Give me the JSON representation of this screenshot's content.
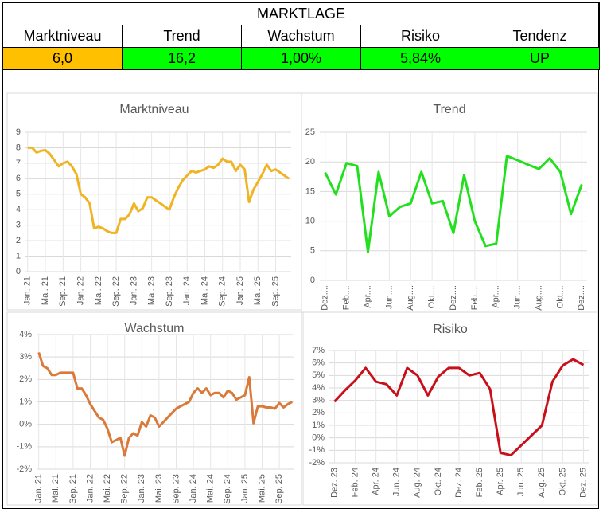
{
  "header": {
    "title": "MARKTLAGE",
    "columns": [
      "Marktniveau",
      "Trend",
      "Wachstum",
      "Risiko",
      "Tendenz"
    ],
    "values": [
      "6,0",
      "16,2",
      "1,00%",
      "5,84%",
      "UP"
    ],
    "colors": [
      "#ffc000",
      "#00ff00",
      "#00ff00",
      "#00ff00",
      "#00ff00"
    ]
  },
  "chart_data": [
    {
      "type": "line",
      "title": "Marktniveau",
      "categories": [
        "Jan. 21",
        null,
        null,
        null,
        "Mai. 21",
        null,
        null,
        null,
        "Sep. 21",
        null,
        null,
        null,
        "Jan. 22",
        null,
        null,
        null,
        "Mai. 22",
        null,
        null,
        null,
        "Sep. 22",
        null,
        null,
        null,
        "Jan. 23",
        null,
        null,
        null,
        "Mai. 23",
        null,
        null,
        null,
        "Sep. 23",
        null,
        null,
        null,
        "Jan. 24",
        null,
        null,
        null,
        "Mai. 24",
        null,
        null,
        null,
        "Sep. 24",
        null,
        null,
        null,
        "Jan. 25",
        null,
        null,
        null,
        "Mai. 25",
        null,
        null,
        null,
        "Sep. 25",
        null,
        null,
        null
      ],
      "series": [
        {
          "color": "#f0b323",
          "values": [
            8.0,
            8.0,
            7.7,
            7.8,
            7.85,
            7.6,
            7.2,
            6.8,
            7.0,
            7.1,
            6.8,
            6.3,
            5.0,
            4.8,
            4.4,
            2.8,
            2.9,
            2.8,
            2.6,
            2.5,
            2.5,
            3.4,
            3.4,
            3.7,
            4.4,
            3.9,
            4.1,
            4.8,
            4.8,
            4.6,
            4.4,
            4.2,
            4.0,
            4.8,
            5.4,
            5.9,
            6.2,
            6.5,
            6.4,
            6.5,
            6.6,
            6.8,
            6.7,
            6.9,
            7.3,
            7.1,
            7.1,
            6.5,
            6.9,
            6.6,
            4.5,
            5.3,
            5.8,
            6.3,
            6.9,
            6.5,
            6.6,
            6.4,
            6.2,
            6.0
          ]
        }
      ],
      "ylim": [
        0,
        9
      ],
      "yticks": [
        0,
        1,
        2,
        3,
        4,
        5,
        6,
        7,
        8,
        9
      ],
      "grid": true
    },
    {
      "type": "line",
      "title": "Trend",
      "categories": [
        "Dez....",
        null,
        "Feb....",
        null,
        "Apr....",
        null,
        "Jun....",
        null,
        "Aug....",
        null,
        "Okt....",
        null,
        "Dez....",
        null,
        "Feb....",
        null,
        "Apr....",
        null,
        "Jun....",
        null,
        "Aug....",
        null,
        "Okt....",
        null,
        "Dez...."
      ],
      "series": [
        {
          "color": "#22e01e",
          "values": [
            18.2,
            14.5,
            19.8,
            19.3,
            4.8,
            18.3,
            10.8,
            12.4,
            13.0,
            18.3,
            13.0,
            13.4,
            8.0,
            17.8,
            10.0,
            5.8,
            6.2,
            21.0,
            20.3,
            19.5,
            18.8,
            20.6,
            18.3,
            11.2,
            16.2
          ]
        }
      ],
      "ylim": [
        0,
        25
      ],
      "yticks": [
        0,
        5,
        10,
        15,
        20,
        25
      ],
      "grid": true
    },
    {
      "type": "line",
      "title": "Wachstum",
      "categories": [
        "Jan. 21",
        null,
        null,
        null,
        "Mai. 21",
        null,
        null,
        null,
        "Sep. 21",
        null,
        null,
        null,
        "Jan. 22",
        null,
        null,
        null,
        "Mai. 22",
        null,
        null,
        null,
        "Sep. 22",
        null,
        null,
        null,
        "Jan. 23",
        null,
        null,
        null,
        "Mai. 23",
        null,
        null,
        null,
        "Sep. 23",
        null,
        null,
        null,
        "Jan. 24",
        null,
        null,
        null,
        "Mai. 24",
        null,
        null,
        null,
        "Sep. 24",
        null,
        null,
        null,
        "Jan. 25",
        null,
        null,
        null,
        "Mai. 25",
        null,
        null,
        null,
        "Sep. 25",
        null,
        null,
        null
      ],
      "series": [
        {
          "color": "#d9793a",
          "values": [
            3.2,
            2.6,
            2.5,
            2.2,
            2.2,
            2.3,
            2.3,
            2.3,
            2.3,
            1.6,
            1.6,
            1.3,
            0.9,
            0.6,
            0.3,
            0.2,
            -0.2,
            -0.8,
            -0.7,
            -0.6,
            -1.4,
            -0.6,
            -0.4,
            -0.5,
            0.1,
            -0.1,
            0.4,
            0.3,
            -0.1,
            0.1,
            0.3,
            0.5,
            0.7,
            0.8,
            0.9,
            1.0,
            1.4,
            1.6,
            1.4,
            1.6,
            1.3,
            1.4,
            1.4,
            1.2,
            1.5,
            1.4,
            1.1,
            1.2,
            1.3,
            2.1,
            0.05,
            0.8,
            0.8,
            0.75,
            0.75,
            0.7,
            0.95,
            0.75,
            0.9,
            1.0
          ]
        }
      ],
      "ylim": [
        -2,
        4
      ],
      "yticks": [
        {
          "value": -2,
          "label": "-2%"
        },
        {
          "value": -1,
          "label": "-1%"
        },
        {
          "value": 0,
          "label": "0%"
        },
        {
          "value": 1,
          "label": "1%"
        },
        {
          "value": 2,
          "label": "2%"
        },
        {
          "value": 3,
          "label": "3%"
        },
        {
          "value": 4,
          "label": "4%"
        }
      ],
      "grid": true
    },
    {
      "type": "line",
      "title": "Risiko",
      "categories": [
        "Dez. 23",
        null,
        "Feb. 24",
        null,
        "Apr. 24",
        null,
        "Jun. 24",
        null,
        "Aug. 24",
        null,
        "Okt. 24",
        null,
        "Dez. 24",
        null,
        "Feb. 25",
        null,
        "Apr. 25",
        null,
        "Jun. 25",
        null,
        "Aug. 25",
        null,
        "Okt. 25",
        null,
        "Dez. 25"
      ],
      "series": [
        {
          "color": "#c8101a",
          "values": [
            2.9,
            3.8,
            4.6,
            5.6,
            4.5,
            4.3,
            3.4,
            5.6,
            5.0,
            3.4,
            4.9,
            5.6,
            5.6,
            5.0,
            5.2,
            3.9,
            -1.2,
            -1.4,
            -0.6,
            0.2,
            1.0,
            4.5,
            5.8,
            6.3,
            5.84
          ]
        }
      ],
      "ylim": [
        -2,
        7
      ],
      "yticks": [
        {
          "value": -2,
          "label": "-2%"
        },
        {
          "value": -1,
          "label": "-1%"
        },
        {
          "value": 0,
          "label": "0%"
        },
        {
          "value": 1,
          "label": "1%"
        },
        {
          "value": 2,
          "label": "2%"
        },
        {
          "value": 3,
          "label": "3%"
        },
        {
          "value": 4,
          "label": "4%"
        },
        {
          "value": 5,
          "label": "5%"
        },
        {
          "value": 6,
          "label": "6%"
        },
        {
          "value": 7,
          "label": "7%"
        }
      ],
      "grid": true
    }
  ]
}
